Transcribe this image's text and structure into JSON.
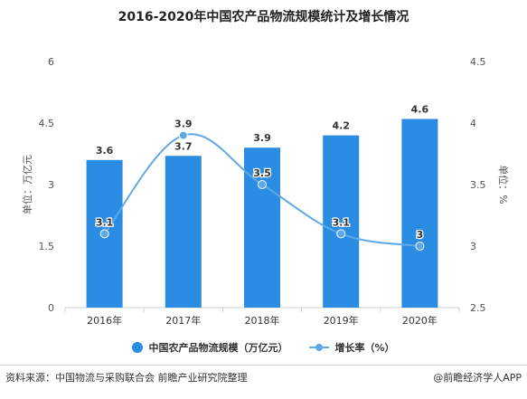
{
  "title": "2016-2020年中国农产品物流规模统计及增长情况",
  "footer": {
    "source": "资料来源：中国物流与采购联合会 前瞻产业研究院整理",
    "brand": "@前瞻经济学人APP"
  },
  "colors": {
    "bar": "#2a8ce3",
    "line": "#5fa8e8",
    "axis": "#d0d0d0",
    "text": "#555555"
  },
  "chart_data": {
    "type": "bar",
    "title": "2016-2020年中国农产品物流规模统计及增长情况",
    "categories": [
      "2016年",
      "2017年",
      "2018年",
      "2019年",
      "2020年"
    ],
    "series": [
      {
        "name": "中国农产品物流规模（万亿元）",
        "type": "bar",
        "axis": "left",
        "values": [
          3.6,
          3.7,
          3.9,
          4.2,
          4.6
        ],
        "labels": [
          "3.6",
          "3.7",
          "3.9",
          "4.2",
          "4.6"
        ]
      },
      {
        "name": "增长率（%）",
        "type": "line",
        "axis": "right",
        "values": [
          3.1,
          3.9,
          3.5,
          3.1,
          3.0
        ],
        "labels": [
          "3.1",
          "3.9",
          "3.5",
          "3.1",
          "3"
        ]
      }
    ],
    "y_left": {
      "label": "单位：万亿元",
      "min": 0,
      "max": 6,
      "ticks": [
        "0",
        "1.5",
        "3",
        "4.5",
        "6"
      ]
    },
    "y_right": {
      "label": "单位：%",
      "min": 2.5,
      "max": 4.5,
      "ticks": [
        "2.5",
        "3",
        "3.5",
        "4",
        "4.5"
      ]
    },
    "grid": false,
    "legend": "bottom"
  }
}
